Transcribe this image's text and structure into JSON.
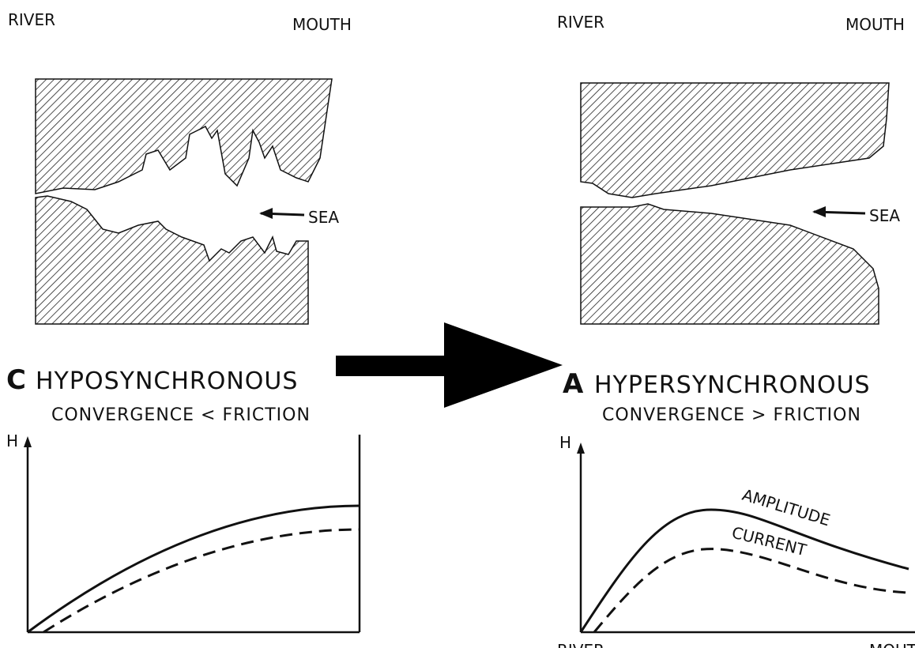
{
  "left_panel": {
    "map": {
      "river_label": "RIVER",
      "mouth_label": "MOUTH",
      "sea_label": "SEA"
    },
    "heading": {
      "letter": "C",
      "title": "HYPOSYNCHRONOUS",
      "subtitle": "CONVERGENCE < FRICTION"
    },
    "graph": {
      "y_axis_label": "H"
    }
  },
  "right_panel": {
    "map": {
      "river_label": "RIVER",
      "mouth_label": "MOUTH",
      "sea_label": "SEA"
    },
    "heading": {
      "letter": "A",
      "title": "HYPERSYNCHRONOUS",
      "subtitle": "CONVERGENCE > FRICTION"
    },
    "graph": {
      "y_axis_label": "H",
      "curve_labels": [
        "AMPLITUDE",
        "CURRENT"
      ],
      "x_start_label": "RIVER",
      "x_end_label": "MOUTH"
    }
  }
}
